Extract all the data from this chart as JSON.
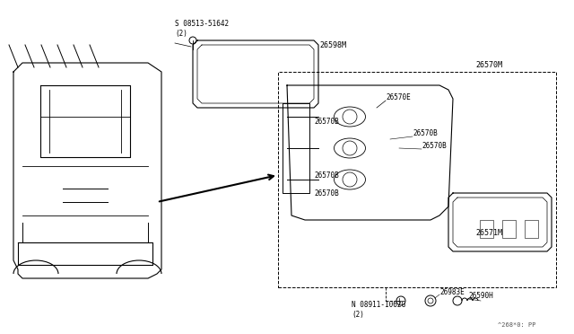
{
  "title": "",
  "bg_color": "#ffffff",
  "line_color": "#000000",
  "fig_width": 6.4,
  "fig_height": 3.72,
  "dpi": 100,
  "watermark": "^268*0: PP",
  "parts": {
    "s_label": "S 08513-51642\n(2)",
    "n_label": "N 08911-1062G\n(2)",
    "part_26598M": "26598M",
    "part_26570M": "26570M",
    "part_26570E": "26570E",
    "part_26570B_1": "26570B",
    "part_26570B_2": "26570B",
    "part_26570B_3": "26570B",
    "part_26570B_4": "26570B",
    "part_26570B_5": "26570B",
    "part_26571M": "26571M",
    "part_26983E": "26983E",
    "part_26590H": "26590H"
  }
}
